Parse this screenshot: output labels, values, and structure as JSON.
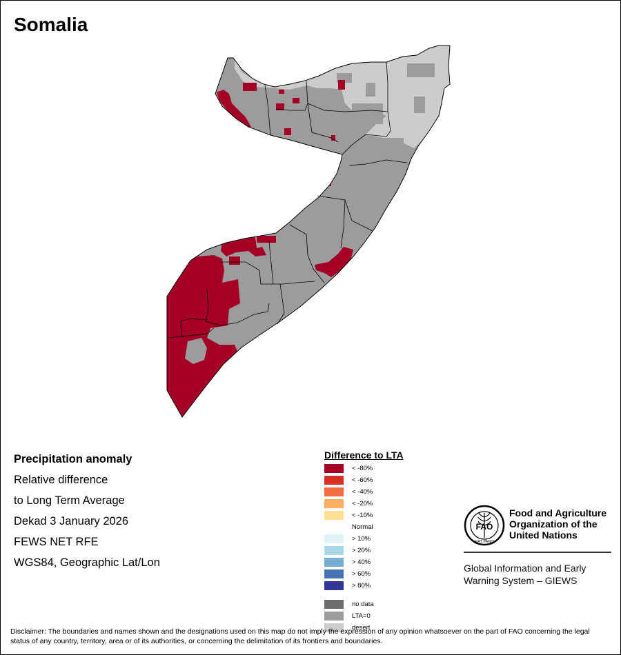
{
  "title": "Somalia",
  "info_lines": [
    "Precipitation anomaly",
    "Relative difference",
    "to Long Term Average",
    "Dekad 3 January 2026",
    "FEWS NET RFE",
    "WGS84, Geographic Lat/Lon"
  ],
  "legend": {
    "title": "Difference to LTA",
    "items": [
      {
        "label": "< -80%",
        "color": "#a50026"
      },
      {
        "label": "< -60%",
        "color": "#d73027"
      },
      {
        "label": "< -40%",
        "color": "#f46d43"
      },
      {
        "label": "< -20%",
        "color": "#fdae61"
      },
      {
        "label": "< -10%",
        "color": "#fee090"
      },
      {
        "label": "Normal",
        "color": "#ffffff"
      },
      {
        "label": "> 10%",
        "color": "#e0f3f8"
      },
      {
        "label": "> 20%",
        "color": "#abd9e9"
      },
      {
        "label": "> 40%",
        "color": "#74add1"
      },
      {
        "label": "> 60%",
        "color": "#4575b4"
      },
      {
        "label": "> 80%",
        "color": "#313695"
      }
    ],
    "extra_items": [
      {
        "label": "no data",
        "color": "#6e6e6e"
      },
      {
        "label": "LTA=0",
        "color": "#9c9c9c"
      },
      {
        "label": "desert",
        "color": "#cccccc"
      }
    ]
  },
  "fao": {
    "logo_text": "FAO",
    "logo_motto": "FIAT PANIS",
    "name_lines": [
      "Food and Agriculture",
      "Organization of the",
      "United Nations"
    ],
    "giews_lines": [
      "Global Information and Early",
      "Warning System – GIEWS"
    ]
  },
  "disclaimer": "Disclaimer: The boundaries and names shown and the designations used on this map do not imply the expression of any opinion whatsoever on the part of FAO concerning the legal status of any country, territory, area or of its authorities, or concerning the delimitation of its frontiers and boundaries.",
  "map_colors": {
    "lta_zero": "#9c9c9c",
    "desert": "#cccccc",
    "dry_extreme": "#a50026",
    "border": "#000000"
  }
}
